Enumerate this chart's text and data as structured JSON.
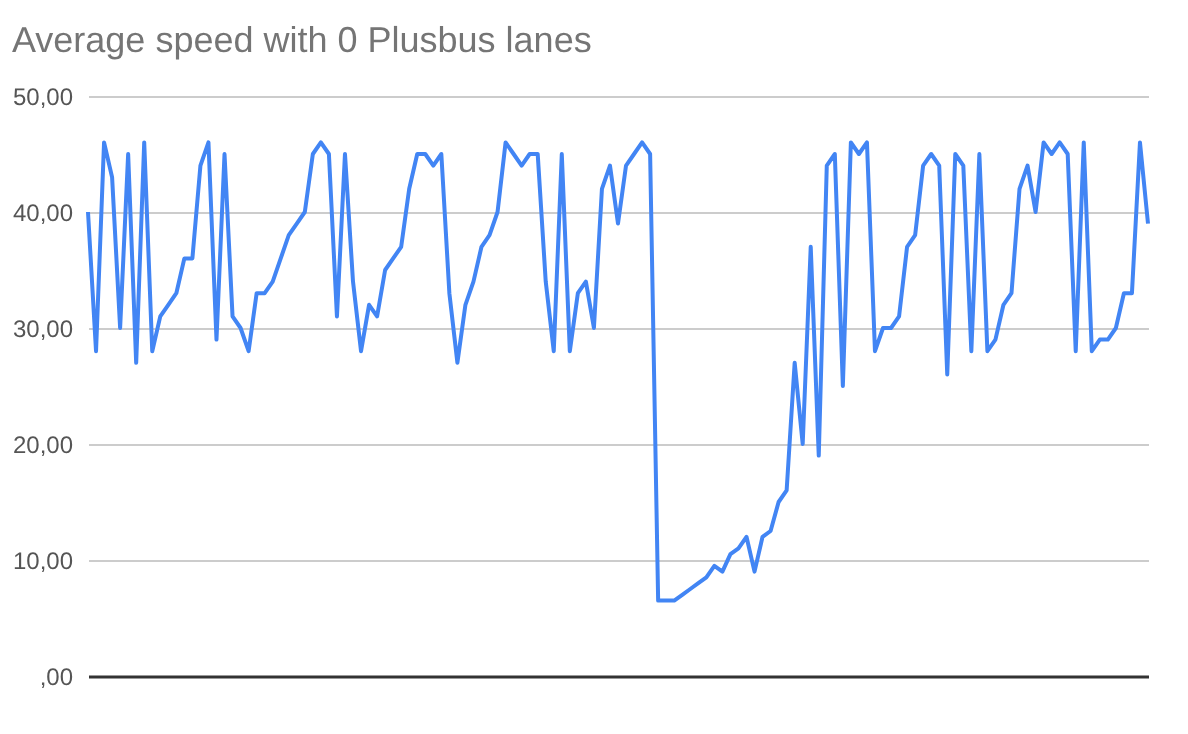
{
  "chart_data": {
    "type": "line",
    "title": "Average speed with 0 Plusbus lanes",
    "categories": [
      null,
      null,
      null,
      null,
      null,
      null,
      null,
      null,
      null,
      null,
      null,
      null,
      null,
      null,
      null,
      null,
      null,
      null,
      null,
      null,
      null,
      null,
      null,
      null,
      null,
      null,
      null,
      null,
      null,
      null,
      null,
      null,
      null,
      null,
      null,
      null,
      null,
      null,
      null,
      null,
      null,
      null,
      null,
      null,
      null,
      null,
      null,
      null,
      null,
      null,
      null,
      null,
      null,
      null,
      null,
      null,
      null,
      null,
      null,
      null,
      null,
      null,
      null,
      null,
      null,
      null,
      null,
      null,
      null,
      null,
      null,
      null,
      null,
      null,
      null,
      null,
      null,
      null,
      null,
      null,
      null,
      null,
      null,
      null,
      null,
      null,
      null,
      null,
      null,
      null,
      null,
      null,
      null,
      null,
      null,
      null,
      null,
      null,
      null,
      null,
      null,
      null,
      null,
      null,
      null,
      null,
      null,
      null,
      null,
      null,
      null,
      null,
      null,
      null,
      null,
      null,
      null,
      null,
      null,
      null,
      null,
      null,
      null,
      null,
      null,
      null,
      null,
      null,
      null,
      null,
      null,
      null,
      null
    ],
    "series": [
      {
        "color": "#4285f4",
        "values": [
          40,
          28,
          46,
          43,
          30,
          45,
          27,
          46,
          28,
          31,
          32,
          33,
          36,
          36,
          44,
          46,
          29,
          45,
          31,
          30,
          28,
          33,
          33,
          34,
          36,
          38,
          39,
          40,
          45,
          46,
          45,
          31,
          45,
          34,
          28,
          32,
          31,
          35,
          36,
          37,
          42,
          45,
          45,
          44,
          45,
          33,
          27,
          32,
          34,
          37,
          38,
          40,
          46,
          45,
          44,
          45,
          45,
          34,
          28,
          45,
          28,
          33,
          34,
          30,
          42,
          44,
          39,
          44,
          45,
          46,
          45,
          6.5,
          6.5,
          6.5,
          7,
          7.5,
          8,
          8.5,
          9.5,
          9,
          10.5,
          11,
          12,
          9,
          12,
          12.5,
          15,
          16,
          27,
          20,
          37,
          19,
          44,
          45,
          25,
          46,
          45,
          46,
          28,
          30,
          30,
          31,
          37,
          38,
          44,
          45,
          44,
          26,
          45,
          44,
          28,
          45,
          28,
          29,
          32,
          33,
          42,
          44,
          40,
          46,
          45,
          46,
          45,
          28,
          46,
          28,
          29,
          29,
          30,
          33,
          33,
          46,
          39
        ]
      }
    ],
    "ylim": [
      0,
      50
    ],
    "yticks": [
      {
        "value": 0,
        "label": ",00"
      },
      {
        "value": 10,
        "label": "10,00"
      },
      {
        "value": 20,
        "label": "20,00"
      },
      {
        "value": 30,
        "label": "30,00"
      },
      {
        "value": 40,
        "label": "40,00"
      },
      {
        "value": 50,
        "label": "50,00"
      }
    ],
    "grid": "y",
    "tick_labels": "y",
    "legend": false,
    "marker": "none",
    "line_style": "solid"
  }
}
